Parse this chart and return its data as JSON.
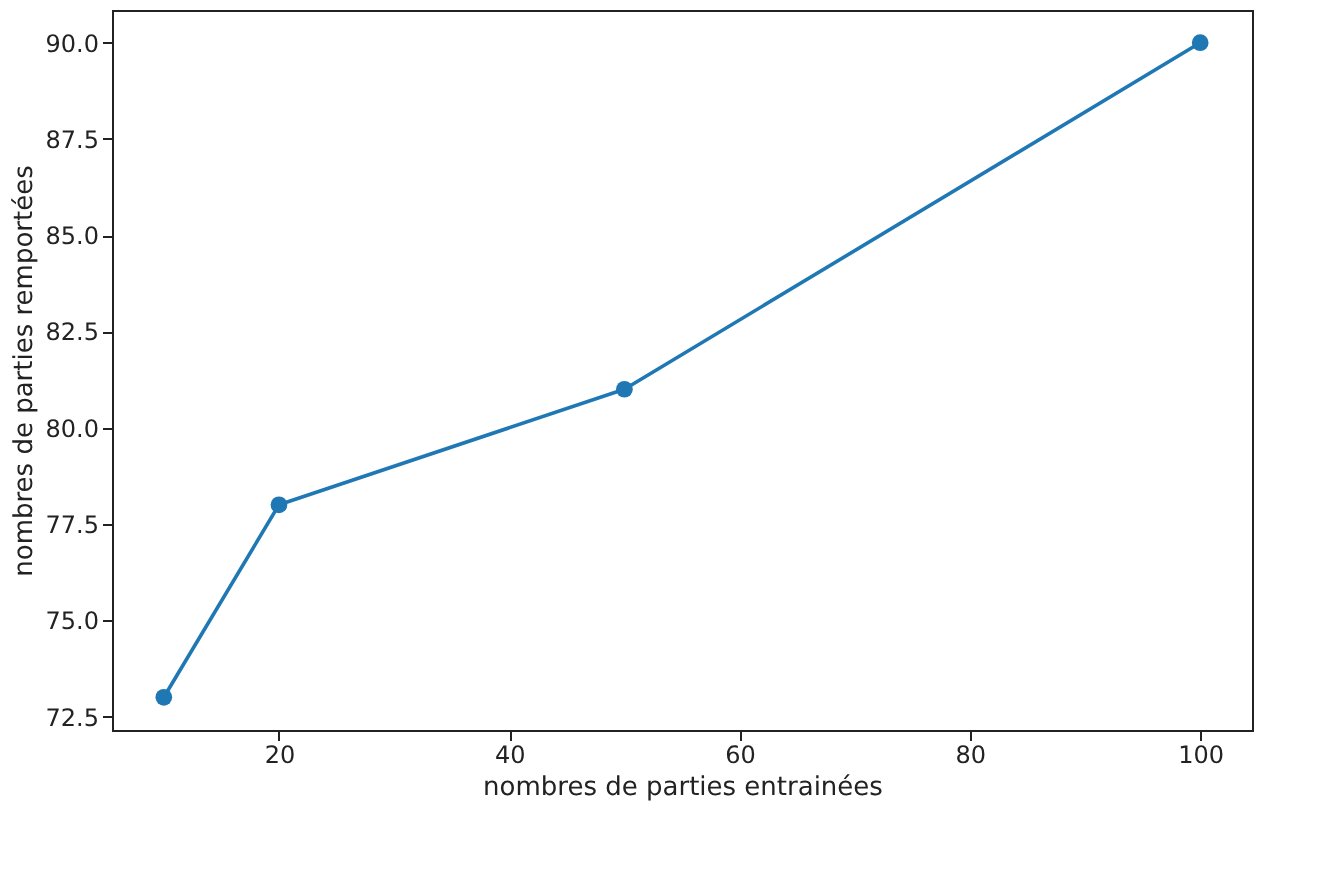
{
  "chart_data": {
    "type": "line",
    "xlabel": "nombres de parties entrainées",
    "ylabel": "nombres de parties remportées",
    "x": [
      10,
      20,
      50,
      100
    ],
    "series": [
      {
        "color": "#1f77b4",
        "values": [
          73,
          78,
          81,
          90
        ]
      }
    ],
    "marker": "circle",
    "line_style": "solid",
    "grid": false,
    "xlim": [
      5.5,
      104.5
    ],
    "xticks": [
      20,
      40,
      60,
      80,
      100
    ],
    "ylim": [
      72.15,
      90.85
    ],
    "yticks": [
      {
        "value": 72.5,
        "label": "72.5"
      },
      {
        "value": 75,
        "label": "75.0"
      },
      {
        "value": 77.5,
        "label": "77.5"
      },
      {
        "value": 80,
        "label": "80.0"
      },
      {
        "value": 82.5,
        "label": "82.5"
      },
      {
        "value": 85,
        "label": "85.0"
      },
      {
        "value": 87.5,
        "label": "87.5"
      },
      {
        "value": 90,
        "label": "90.0"
      }
    ]
  }
}
